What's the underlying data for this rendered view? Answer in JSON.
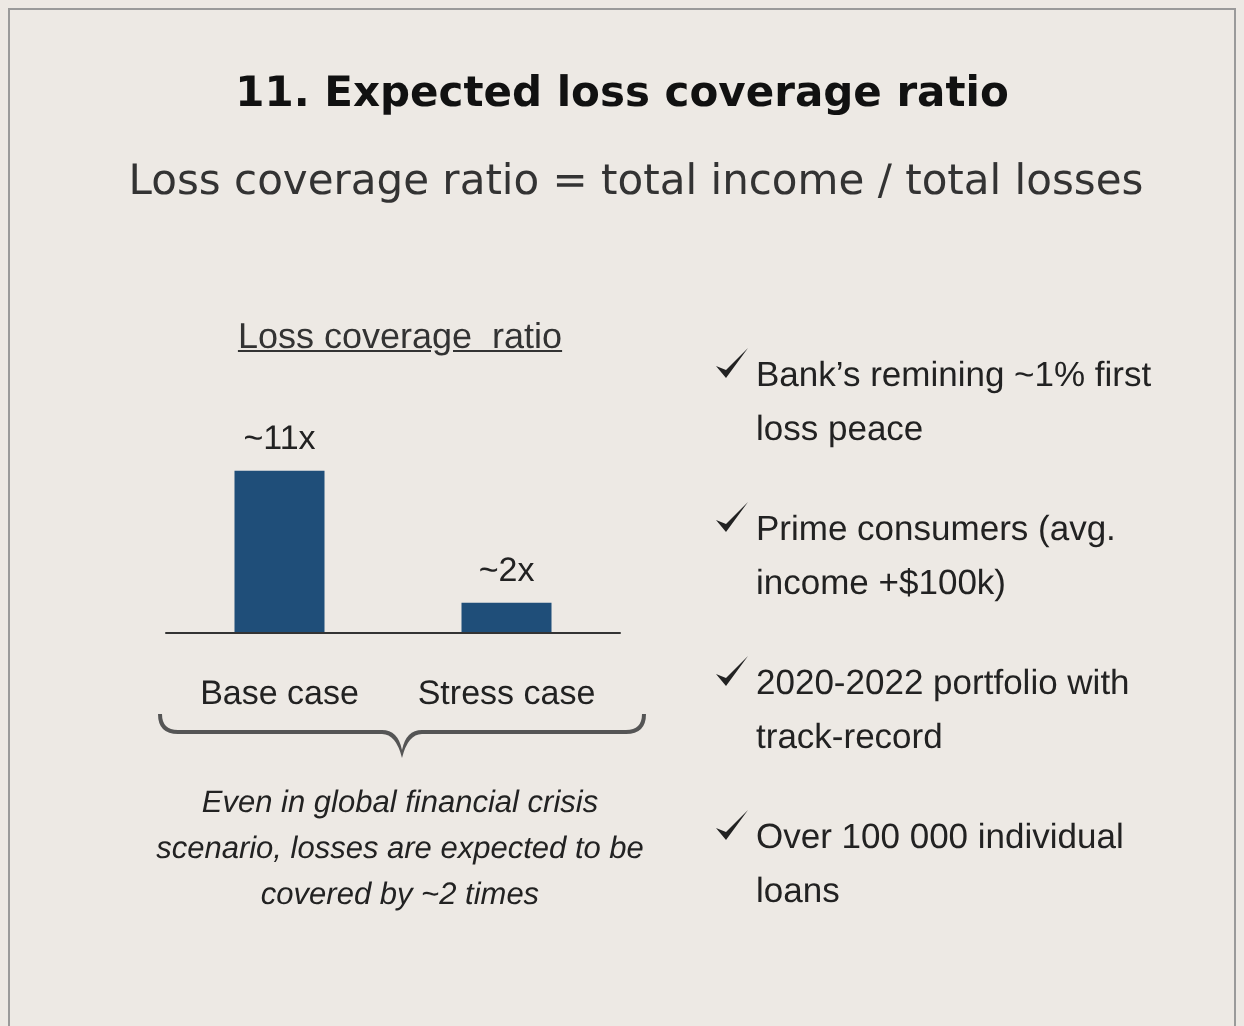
{
  "chart_data": {
    "type": "bar",
    "title": "11. Expected loss coverage ratio",
    "subtitle": "Loss coverage ratio = total income / total losses",
    "categories": [
      "Base case",
      "Stress case"
    ],
    "values": [
      11,
      2
    ],
    "value_labels": [
      "~11x",
      "~2x"
    ],
    "color": "#1f4e79",
    "annotations": [
      "Loss coverage  ratio",
      "Even in global financial crisis scenario, losses are expected to be covered by ~2 times",
      "Bank’s remining ~1% first loss peace",
      "Prime consumers (avg. income +$100k)",
      "2020-2022 portfolio with track-record",
      "Over 100 000 individual loans"
    ]
  }
}
